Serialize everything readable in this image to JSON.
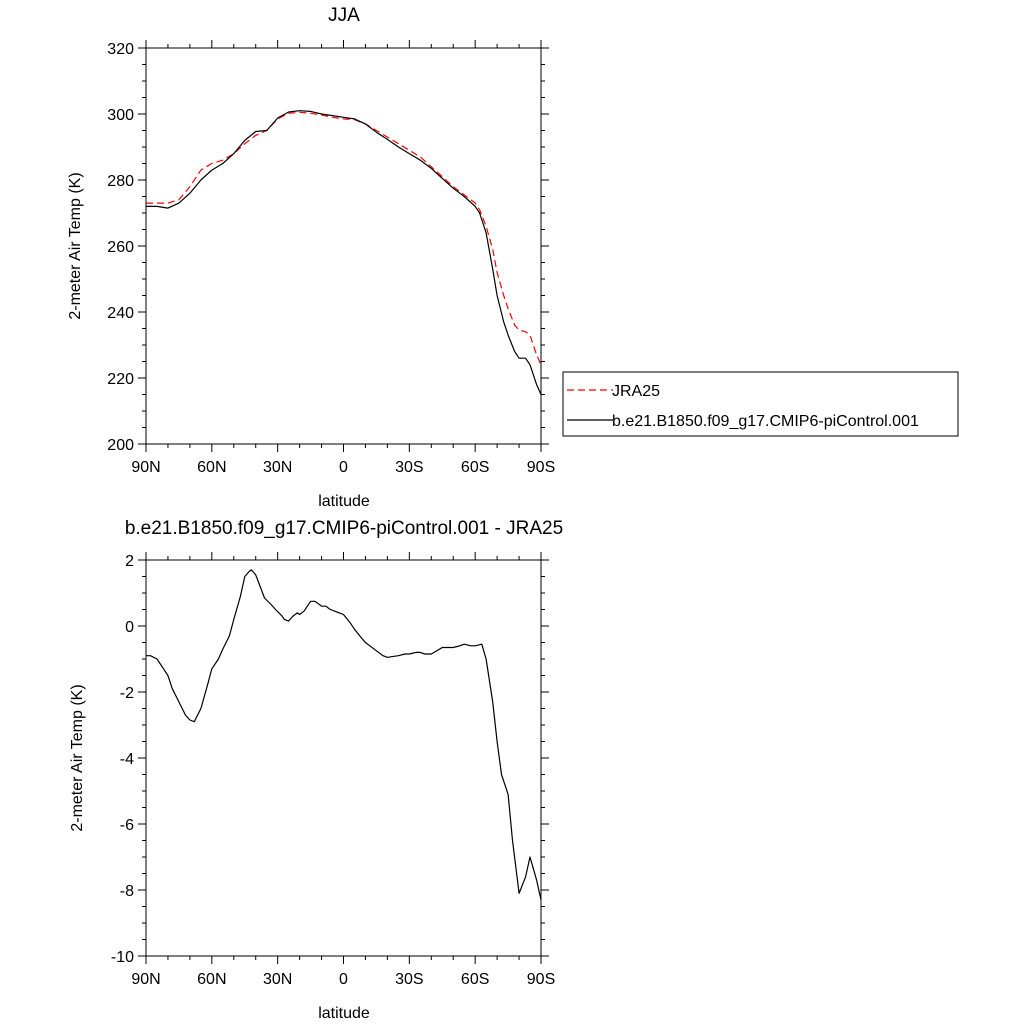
{
  "chart_data": [
    {
      "type": "line",
      "title": "JJA",
      "xlabel": "latitude",
      "ylabel": "2-meter Air Temp (K)",
      "xlim": [
        90,
        -90
      ],
      "ylim": [
        200,
        320
      ],
      "xticks": [
        {
          "value": 90,
          "label": "90N"
        },
        {
          "value": 60,
          "label": "60N"
        },
        {
          "value": 30,
          "label": "30N"
        },
        {
          "value": 0,
          "label": "0"
        },
        {
          "value": -30,
          "label": "30S"
        },
        {
          "value": -60,
          "label": "60S"
        },
        {
          "value": -90,
          "label": "90S"
        }
      ],
      "yticks": [
        200,
        220,
        240,
        260,
        280,
        300,
        320
      ],
      "legend_position": "right",
      "series": [
        {
          "name": "JRA25",
          "style": "dashed",
          "color": "#ff0000",
          "x": [
            90,
            80,
            75,
            70,
            65,
            60,
            55,
            50,
            45,
            40,
            35,
            30,
            25,
            20,
            15,
            10,
            5,
            0,
            -5,
            -10,
            -15,
            -20,
            -25,
            -30,
            -35,
            -40,
            -45,
            -50,
            -55,
            -60,
            -62,
            -65,
            -68,
            -70,
            -73,
            -75,
            -78,
            -80,
            -83,
            -85,
            -88,
            -90
          ],
          "values": [
            273,
            273,
            274,
            278,
            283,
            285,
            286,
            288,
            291,
            293.5,
            295,
            298.5,
            300.2,
            300.5,
            300.2,
            299.7,
            299,
            298.5,
            298.3,
            297,
            295,
            293,
            291,
            289,
            287,
            284,
            281,
            278,
            275.5,
            273,
            271,
            266,
            259,
            252,
            245,
            241,
            236,
            234.5,
            234,
            233,
            227,
            224
          ]
        },
        {
          "name": "b.e21.B1850.f09_g17.CMIP6-piControl.001",
          "style": "solid",
          "color": "#000000",
          "x": [
            90,
            85,
            80,
            75,
            70,
            65,
            60,
            55,
            50,
            45,
            40,
            35,
            30,
            25,
            20,
            15,
            10,
            5,
            0,
            -5,
            -10,
            -15,
            -20,
            -25,
            -30,
            -35,
            -40,
            -45,
            -50,
            -55,
            -60,
            -62,
            -65,
            -68,
            -70,
            -73,
            -75,
            -78,
            -80,
            -83,
            -85,
            -88,
            -90
          ],
          "values": [
            272,
            272,
            271.5,
            273,
            276,
            280,
            283,
            285,
            288,
            292,
            294.7,
            295,
            298.8,
            300.6,
            301,
            300.8,
            300,
            299.5,
            299,
            298.5,
            297,
            294.5,
            292.3,
            290,
            288,
            286,
            283.5,
            280.5,
            277.5,
            275,
            272,
            270,
            264,
            253,
            245,
            237,
            233,
            228,
            226,
            226,
            224,
            218,
            215
          ]
        }
      ]
    },
    {
      "type": "line",
      "title": "b.e21.B1850.f09_g17.CMIP6-piControl.001 - JRA25",
      "xlabel": "latitude",
      "ylabel": "2-meter Air Temp (K)",
      "xlim": [
        90,
        -90
      ],
      "ylim": [
        -10,
        2
      ],
      "xticks": [
        {
          "value": 90,
          "label": "90N"
        },
        {
          "value": 60,
          "label": "60N"
        },
        {
          "value": 30,
          "label": "30N"
        },
        {
          "value": 0,
          "label": "0"
        },
        {
          "value": -30,
          "label": "30S"
        },
        {
          "value": -60,
          "label": "60S"
        },
        {
          "value": -90,
          "label": "90S"
        }
      ],
      "yticks": [
        -10,
        -8,
        -6,
        -4,
        -2,
        0,
        2
      ],
      "series": [
        {
          "style": "solid",
          "color": "#000000",
          "x": [
            90,
            88,
            85,
            82,
            80,
            78,
            75,
            72,
            70,
            68,
            65,
            62,
            60,
            57,
            55,
            52,
            50,
            47,
            45,
            43,
            42,
            40,
            38,
            36,
            33,
            31,
            28,
            27,
            25,
            23,
            21,
            20,
            18,
            15,
            13,
            11,
            10,
            8,
            6,
            4,
            2,
            0,
            -3,
            -5,
            -8,
            -10,
            -12,
            -15,
            -18,
            -20,
            -25,
            -28,
            -30,
            -33,
            -35,
            -37,
            -40,
            -45,
            -50,
            -53,
            -55,
            -58,
            -60,
            -63,
            -65,
            -68,
            -70,
            -72,
            -75,
            -77,
            -80,
            -83,
            -85,
            -88,
            -90
          ],
          "values": [
            -0.9,
            -0.9,
            -1.0,
            -1.3,
            -1.5,
            -1.9,
            -2.3,
            -2.7,
            -2.85,
            -2.9,
            -2.5,
            -1.8,
            -1.3,
            -1.0,
            -0.7,
            -0.3,
            0.2,
            0.9,
            1.5,
            1.65,
            1.7,
            1.55,
            1.2,
            0.85,
            0.65,
            0.5,
            0.3,
            0.2,
            0.15,
            0.3,
            0.4,
            0.35,
            0.45,
            0.75,
            0.75,
            0.65,
            0.6,
            0.6,
            0.5,
            0.45,
            0.4,
            0.35,
            0.1,
            -0.1,
            -0.35,
            -0.5,
            -0.6,
            -0.75,
            -0.9,
            -0.95,
            -0.9,
            -0.85,
            -0.85,
            -0.8,
            -0.8,
            -0.85,
            -0.85,
            -0.65,
            -0.65,
            -0.6,
            -0.55,
            -0.6,
            -0.6,
            -0.55,
            -1.0,
            -2.3,
            -3.5,
            -4.5,
            -5.1,
            -6.5,
            -8.1,
            -7.6,
            -7.0,
            -7.7,
            -8.3
          ]
        }
      ]
    }
  ],
  "legend": {
    "entries": [
      {
        "label": "JRA25",
        "style": "dashed",
        "color": "#ff0000"
      },
      {
        "label": "b.e21.B1850.f09_g17.CMIP6-piControl.001",
        "style": "solid",
        "color": "#000000"
      }
    ]
  }
}
